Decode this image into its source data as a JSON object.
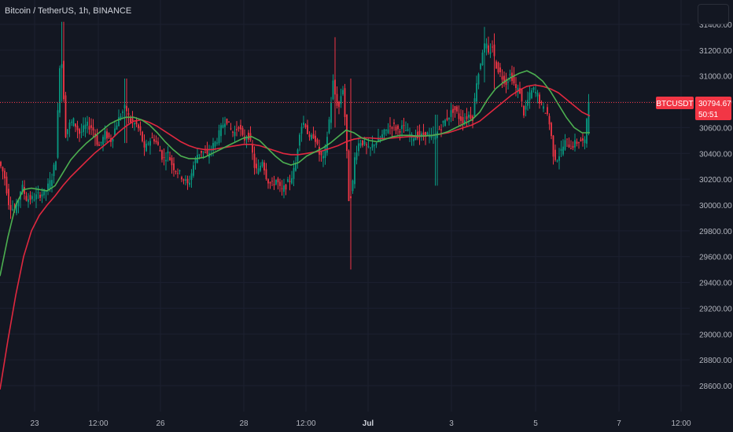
{
  "header": {
    "symbol_title": "Bitcoin / TetherUS, 1h, BINANCE"
  },
  "price_tag": {
    "ticker": "BTCUSDT",
    "price": "30794.67",
    "countdown": "50:51",
    "color": "#f23645"
  },
  "chart_data": {
    "type": "candlestick",
    "title": "Bitcoin / TetherUS, 1h, BINANCE",
    "ylim": [
      28470,
      31640
    ],
    "y_ticks": [
      28600,
      28800,
      29000,
      29200,
      29400,
      29600,
      29800,
      30000,
      30200,
      30400,
      30600,
      30800,
      31000,
      31200,
      31400
    ],
    "y_tick_labels": [
      "28600.00",
      "28800.00",
      "29000.00",
      "29200.00",
      "29400.00",
      "29600.00",
      "29800.00",
      "30000.00",
      "30200.00",
      "30400.00",
      "30600.00",
      "30800.00",
      "31000.00",
      "31200.00",
      "31400.00"
    ],
    "x_ticks": [
      "23",
      "12:00",
      "26",
      "28",
      "12:00",
      "Jul",
      "3",
      "5",
      "7",
      "12:00"
    ],
    "x_ticks_bold": [
      "Jul"
    ],
    "current_price": 30794.67,
    "grid": true,
    "colors": {
      "background": "#131722",
      "up": "#089981",
      "down": "#f23645",
      "ma_fast": "#4caf50",
      "ma_slow": "#e0283f"
    },
    "candle_keypoints": [
      [
        0,
        30350
      ],
      [
        8,
        30230
      ],
      [
        14,
        30000
      ],
      [
        22,
        29950
      ],
      [
        30,
        30150
      ],
      [
        36,
        30050
      ],
      [
        44,
        30050
      ],
      [
        52,
        30080
      ],
      [
        60,
        30100
      ],
      [
        68,
        30200
      ],
      [
        74,
        30380
      ],
      [
        78,
        31050
      ],
      [
        80,
        31200
      ],
      [
        83,
        30900
      ],
      [
        86,
        30550
      ],
      [
        90,
        30620
      ],
      [
        96,
        30650
      ],
      [
        104,
        30550
      ],
      [
        112,
        30620
      ],
      [
        120,
        30600
      ],
      [
        128,
        30450
      ],
      [
        136,
        30550
      ],
      [
        144,
        30500
      ],
      [
        150,
        30620
      ],
      [
        156,
        30700
      ],
      [
        162,
        30760
      ],
      [
        168,
        30650
      ],
      [
        176,
        30620
      ],
      [
        182,
        30550
      ],
      [
        186,
        30420
      ],
      [
        192,
        30500
      ],
      [
        198,
        30520
      ],
      [
        204,
        30450
      ],
      [
        210,
        30350
      ],
      [
        216,
        30400
      ],
      [
        222,
        30300
      ],
      [
        230,
        30250
      ],
      [
        236,
        30200
      ],
      [
        242,
        30150
      ],
      [
        248,
        30300
      ],
      [
        254,
        30400
      ],
      [
        260,
        30420
      ],
      [
        266,
        30380
      ],
      [
        272,
        30450
      ],
      [
        278,
        30500
      ],
      [
        284,
        30600
      ],
      [
        290,
        30680
      ],
      [
        294,
        30600
      ],
      [
        300,
        30550
      ],
      [
        306,
        30620
      ],
      [
        312,
        30500
      ],
      [
        318,
        30550
      ],
      [
        322,
        30450
      ],
      [
        326,
        30300
      ],
      [
        330,
        30250
      ],
      [
        336,
        30350
      ],
      [
        342,
        30200
      ],
      [
        348,
        30150
      ],
      [
        354,
        30200
      ],
      [
        360,
        30100
      ],
      [
        366,
        30150
      ],
      [
        372,
        30200
      ],
      [
        378,
        30300
      ],
      [
        384,
        30600
      ],
      [
        390,
        30650
      ],
      [
        396,
        30500
      ],
      [
        402,
        30550
      ],
      [
        408,
        30400
      ],
      [
        414,
        30350
      ],
      [
        420,
        30600
      ],
      [
        426,
        30950
      ],
      [
        430,
        30800
      ],
      [
        434,
        30750
      ],
      [
        438,
        30950
      ],
      [
        442,
        30600
      ],
      [
        446,
        30050
      ],
      [
        450,
        30100
      ],
      [
        454,
        30400
      ],
      [
        460,
        30500
      ],
      [
        466,
        30470
      ],
      [
        472,
        30420
      ],
      [
        478,
        30480
      ],
      [
        484,
        30500
      ],
      [
        490,
        30550
      ],
      [
        496,
        30600
      ],
      [
        502,
        30620
      ],
      [
        508,
        30580
      ],
      [
        514,
        30600
      ],
      [
        520,
        30570
      ],
      [
        526,
        30520
      ],
      [
        532,
        30550
      ],
      [
        538,
        30530
      ],
      [
        544,
        30560
      ],
      [
        550,
        30520
      ],
      [
        556,
        30540
      ],
      [
        562,
        30600
      ],
      [
        568,
        30650
      ],
      [
        574,
        30700
      ],
      [
        580,
        30750
      ],
      [
        586,
        30680
      ],
      [
        592,
        30650
      ],
      [
        598,
        30700
      ],
      [
        604,
        30680
      ],
      [
        608,
        30950
      ],
      [
        612,
        31050
      ],
      [
        616,
        31200
      ],
      [
        620,
        31250
      ],
      [
        624,
        31150
      ],
      [
        628,
        31250
      ],
      [
        632,
        31100
      ],
      [
        636,
        31050
      ],
      [
        640,
        31000
      ],
      [
        646,
        30950
      ],
      [
        652,
        31020
      ],
      [
        658,
        30900
      ],
      [
        664,
        30880
      ],
      [
        668,
        30700
      ],
      [
        674,
        30820
      ],
      [
        680,
        30900
      ],
      [
        686,
        30850
      ],
      [
        692,
        30750
      ],
      [
        698,
        30720
      ],
      [
        702,
        30600
      ],
      [
        706,
        30400
      ],
      [
        710,
        30350
      ],
      [
        716,
        30420
      ],
      [
        722,
        30500
      ],
      [
        728,
        30450
      ],
      [
        734,
        30480
      ],
      [
        740,
        30500
      ],
      [
        746,
        30480
      ],
      [
        750,
        30794.67
      ]
    ],
    "ma_fast": [
      [
        0,
        29450
      ],
      [
        10,
        29750
      ],
      [
        20,
        30000
      ],
      [
        30,
        30120
      ],
      [
        40,
        30130
      ],
      [
        50,
        30120
      ],
      [
        60,
        30110
      ],
      [
        70,
        30150
      ],
      [
        80,
        30250
      ],
      [
        90,
        30350
      ],
      [
        100,
        30420
      ],
      [
        110,
        30480
      ],
      [
        120,
        30530
      ],
      [
        130,
        30580
      ],
      [
        140,
        30630
      ],
      [
        150,
        30660
      ],
      [
        160,
        30680
      ],
      [
        170,
        30680
      ],
      [
        180,
        30660
      ],
      [
        190,
        30620
      ],
      [
        200,
        30560
      ],
      [
        210,
        30490
      ],
      [
        220,
        30430
      ],
      [
        230,
        30380
      ],
      [
        240,
        30360
      ],
      [
        250,
        30360
      ],
      [
        260,
        30370
      ],
      [
        270,
        30400
      ],
      [
        280,
        30430
      ],
      [
        290,
        30460
      ],
      [
        300,
        30490
      ],
      [
        310,
        30520
      ],
      [
        320,
        30530
      ],
      [
        330,
        30500
      ],
      [
        340,
        30440
      ],
      [
        350,
        30380
      ],
      [
        360,
        30330
      ],
      [
        370,
        30310
      ],
      [
        380,
        30330
      ],
      [
        390,
        30380
      ],
      [
        400,
        30410
      ],
      [
        410,
        30440
      ],
      [
        420,
        30480
      ],
      [
        430,
        30530
      ],
      [
        440,
        30580
      ],
      [
        450,
        30560
      ],
      [
        460,
        30520
      ],
      [
        470,
        30500
      ],
      [
        480,
        30490
      ],
      [
        490,
        30510
      ],
      [
        500,
        30530
      ],
      [
        510,
        30540
      ],
      [
        520,
        30540
      ],
      [
        530,
        30535
      ],
      [
        540,
        30535
      ],
      [
        550,
        30540
      ],
      [
        560,
        30550
      ],
      [
        570,
        30570
      ],
      [
        580,
        30600
      ],
      [
        590,
        30630
      ],
      [
        600,
        30660
      ],
      [
        610,
        30720
      ],
      [
        620,
        30820
      ],
      [
        630,
        30900
      ],
      [
        640,
        30950
      ],
      [
        650,
        30990
      ],
      [
        660,
        31020
      ],
      [
        670,
        31040
      ],
      [
        680,
        31010
      ],
      [
        690,
        30960
      ],
      [
        700,
        30880
      ],
      [
        710,
        30780
      ],
      [
        720,
        30680
      ],
      [
        730,
        30600
      ],
      [
        740,
        30560
      ],
      [
        750,
        30560
      ]
    ],
    "ma_slow": [
      [
        0,
        28570
      ],
      [
        10,
        28950
      ],
      [
        20,
        29300
      ],
      [
        30,
        29600
      ],
      [
        40,
        29800
      ],
      [
        50,
        29920
      ],
      [
        60,
        30000
      ],
      [
        70,
        30070
      ],
      [
        80,
        30150
      ],
      [
        90,
        30220
      ],
      [
        100,
        30280
      ],
      [
        110,
        30340
      ],
      [
        120,
        30400
      ],
      [
        130,
        30450
      ],
      [
        140,
        30500
      ],
      [
        150,
        30560
      ],
      [
        160,
        30610
      ],
      [
        170,
        30650
      ],
      [
        180,
        30660
      ],
      [
        190,
        30640
      ],
      [
        200,
        30610
      ],
      [
        210,
        30570
      ],
      [
        220,
        30530
      ],
      [
        230,
        30490
      ],
      [
        240,
        30460
      ],
      [
        250,
        30440
      ],
      [
        260,
        30430
      ],
      [
        270,
        30430
      ],
      [
        280,
        30440
      ],
      [
        290,
        30450
      ],
      [
        300,
        30460
      ],
      [
        310,
        30470
      ],
      [
        320,
        30470
      ],
      [
        330,
        30460
      ],
      [
        340,
        30440
      ],
      [
        350,
        30420
      ],
      [
        360,
        30400
      ],
      [
        370,
        30390
      ],
      [
        380,
        30390
      ],
      [
        390,
        30400
      ],
      [
        400,
        30410
      ],
      [
        410,
        30420
      ],
      [
        420,
        30440
      ],
      [
        430,
        30460
      ],
      [
        440,
        30490
      ],
      [
        450,
        30510
      ],
      [
        460,
        30520
      ],
      [
        470,
        30520
      ],
      [
        480,
        30515
      ],
      [
        490,
        30515
      ],
      [
        500,
        30520
      ],
      [
        510,
        30525
      ],
      [
        520,
        30530
      ],
      [
        530,
        30530
      ],
      [
        540,
        30535
      ],
      [
        550,
        30540
      ],
      [
        560,
        30550
      ],
      [
        570,
        30560
      ],
      [
        580,
        30580
      ],
      [
        590,
        30600
      ],
      [
        600,
        30620
      ],
      [
        610,
        30650
      ],
      [
        620,
        30700
      ],
      [
        630,
        30750
      ],
      [
        640,
        30800
      ],
      [
        650,
        30850
      ],
      [
        660,
        30890
      ],
      [
        670,
        30920
      ],
      [
        680,
        30930
      ],
      [
        690,
        30920
      ],
      [
        700,
        30900
      ],
      [
        710,
        30870
      ],
      [
        720,
        30820
      ],
      [
        730,
        30770
      ],
      [
        740,
        30720
      ],
      [
        750,
        30690
      ]
    ]
  }
}
